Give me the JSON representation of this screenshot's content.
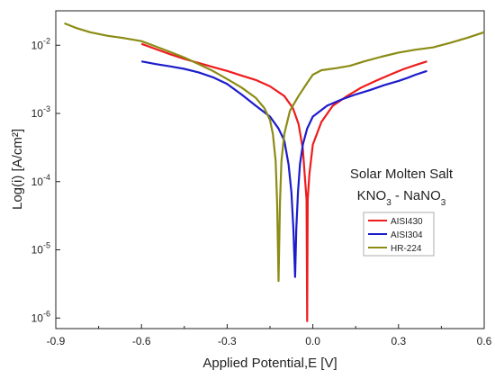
{
  "chart_data": {
    "type": "line",
    "xlabel": "Applied Potential,E [V]",
    "ylabel": "Log(i) [A/cm²]",
    "xlim": [
      -0.9,
      0.6
    ],
    "ylim": [
      7e-07,
      0.032
    ],
    "yscale": "log",
    "x_ticks": [
      -0.9,
      -0.6,
      -0.3,
      0.0,
      0.3,
      0.6
    ],
    "x_tick_labels": [
      "-0.9",
      "-0.6",
      "-0.3",
      "0.0",
      "0.3",
      "0.6"
    ],
    "y_tick_exponents": [
      -6,
      -5,
      -4,
      -3,
      -2
    ],
    "annotation": {
      "line1": "Solar Molten Salt",
      "line2": "KNO3 - NaNO3"
    },
    "legend": {
      "position": "right, mid-lower"
    },
    "series": [
      {
        "name": "AISI430",
        "color": "#ee1c1c",
        "points": [
          [
            -0.6,
            0.0105
          ],
          [
            -0.55,
            0.0088
          ],
          [
            -0.5,
            0.0074
          ],
          [
            -0.45,
            0.0063
          ],
          [
            -0.4,
            0.0055
          ],
          [
            -0.35,
            0.0048
          ],
          [
            -0.3,
            0.0042
          ],
          [
            -0.25,
            0.0036
          ],
          [
            -0.2,
            0.0031
          ],
          [
            -0.15,
            0.0025
          ],
          [
            -0.1,
            0.0018
          ],
          [
            -0.07,
            0.0012
          ],
          [
            -0.05,
            0.0007
          ],
          [
            -0.035,
            0.0003
          ],
          [
            -0.028,
            0.00012
          ],
          [
            -0.022,
            5.5e-05
          ],
          [
            -0.02,
            9e-07
          ],
          [
            -0.018,
            5.5e-05
          ],
          [
            -0.012,
            0.00013
          ],
          [
            0.0,
            0.00035
          ],
          [
            0.03,
            0.00075
          ],
          [
            0.07,
            0.0013
          ],
          [
            0.12,
            0.0018
          ],
          [
            0.17,
            0.0024
          ],
          [
            0.22,
            0.003
          ],
          [
            0.27,
            0.0037
          ],
          [
            0.32,
            0.0045
          ],
          [
            0.37,
            0.0053
          ],
          [
            0.4,
            0.0058
          ]
        ]
      },
      {
        "name": "AISI304",
        "color": "#1c1ccc",
        "points": [
          [
            -0.6,
            0.0058
          ],
          [
            -0.55,
            0.0053
          ],
          [
            -0.5,
            0.0049
          ],
          [
            -0.45,
            0.0045
          ],
          [
            -0.4,
            0.004
          ],
          [
            -0.35,
            0.0034
          ],
          [
            -0.3,
            0.0027
          ],
          [
            -0.25,
            0.0019
          ],
          [
            -0.2,
            0.0013
          ],
          [
            -0.15,
            0.0009
          ],
          [
            -0.12,
            0.0006
          ],
          [
            -0.1,
            0.0004
          ],
          [
            -0.085,
            0.00018
          ],
          [
            -0.075,
            7e-05
          ],
          [
            -0.068,
            2e-05
          ],
          [
            -0.062,
            4e-06
          ],
          [
            -0.058,
            2e-05
          ],
          [
            -0.052,
            7e-05
          ],
          [
            -0.045,
            0.00018
          ],
          [
            -0.035,
            0.00035
          ],
          [
            -0.02,
            0.0006
          ],
          [
            0.0,
            0.0009
          ],
          [
            0.05,
            0.0013
          ],
          [
            0.1,
            0.0016
          ],
          [
            0.15,
            0.0019
          ],
          [
            0.2,
            0.0022
          ],
          [
            0.25,
            0.0026
          ],
          [
            0.3,
            0.003
          ],
          [
            0.33,
            0.0033
          ],
          [
            0.36,
            0.0037
          ],
          [
            0.4,
            0.0042
          ]
        ]
      },
      {
        "name": "HR-224",
        "color": "#8b8b15",
        "points": [
          [
            -0.87,
            0.021
          ],
          [
            -0.83,
            0.018
          ],
          [
            -0.78,
            0.0155
          ],
          [
            -0.72,
            0.0138
          ],
          [
            -0.66,
            0.0127
          ],
          [
            -0.6,
            0.0115
          ],
          [
            -0.55,
            0.0096
          ],
          [
            -0.5,
            0.008
          ],
          [
            -0.45,
            0.0066
          ],
          [
            -0.4,
            0.0053
          ],
          [
            -0.35,
            0.0042
          ],
          [
            -0.3,
            0.0032
          ],
          [
            -0.25,
            0.0024
          ],
          [
            -0.2,
            0.0017
          ],
          [
            -0.17,
            0.0012
          ],
          [
            -0.15,
            0.0008
          ],
          [
            -0.14,
            0.0005
          ],
          [
            -0.13,
            0.0002
          ],
          [
            -0.125,
            5e-05
          ],
          [
            -0.12,
            3.5e-06
          ],
          [
            -0.115,
            5e-05
          ],
          [
            -0.11,
            0.0002
          ],
          [
            -0.1,
            0.0005
          ],
          [
            -0.08,
            0.0011
          ],
          [
            -0.05,
            0.0018
          ],
          [
            -0.02,
            0.0028
          ],
          [
            0.0,
            0.0037
          ],
          [
            0.03,
            0.0043
          ],
          [
            0.08,
            0.0046
          ],
          [
            0.13,
            0.005
          ],
          [
            0.18,
            0.0058
          ],
          [
            0.24,
            0.0068
          ],
          [
            0.3,
            0.0078
          ],
          [
            0.36,
            0.0086
          ],
          [
            0.42,
            0.0093
          ],
          [
            0.48,
            0.0108
          ],
          [
            0.54,
            0.0128
          ],
          [
            0.6,
            0.0155
          ]
        ]
      }
    ]
  }
}
